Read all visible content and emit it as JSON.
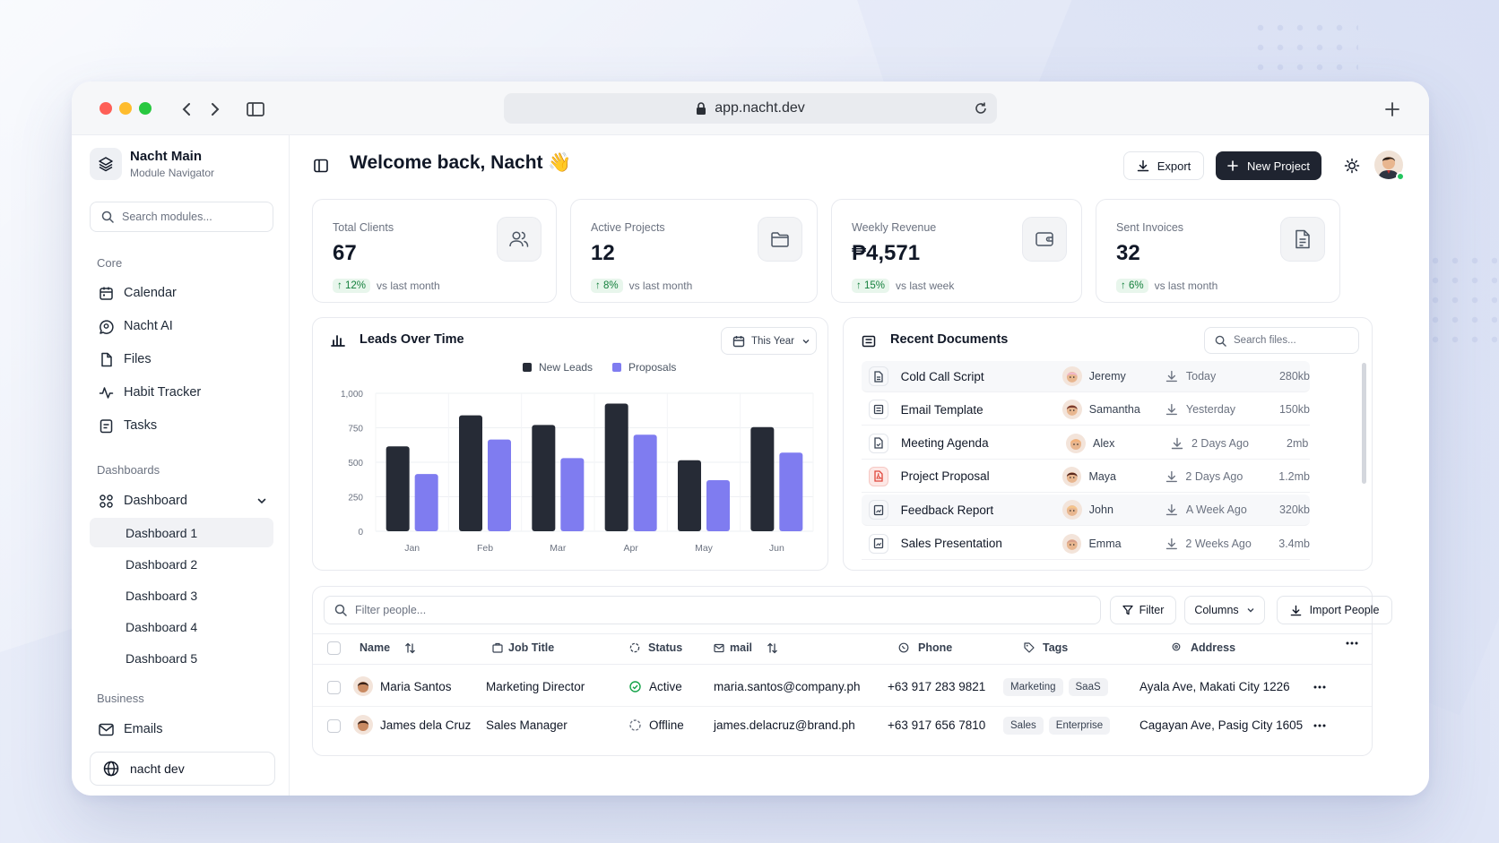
{
  "browser": {
    "url": "app.nacht.dev"
  },
  "colors": {
    "dark": "#1f2430",
    "accent": "#7f7cf0",
    "green": "#16a34a"
  },
  "sidebar": {
    "workspace_name": "Nacht Main",
    "workspace_sub": "Module Navigator",
    "search_placeholder": "Search modules...",
    "core_label": "Core",
    "core_items": [
      {
        "label": "Calendar",
        "icon": "calendar-icon"
      },
      {
        "label": "Nacht AI",
        "icon": "ai-chat-icon"
      },
      {
        "label": "Files",
        "icon": "file-icon"
      },
      {
        "label": "Habit Tracker",
        "icon": "activity-icon"
      },
      {
        "label": "Tasks",
        "icon": "tasks-icon"
      }
    ],
    "dashboards_label": "Dashboards",
    "dashboard_group": "Dashboard",
    "dashboard_items": [
      "Dashboard 1",
      "Dashboard 2",
      "Dashboard 3",
      "Dashboard 4",
      "Dashboard 5"
    ],
    "business_label": "Business",
    "emails": "Emails",
    "footer": "nacht dev"
  },
  "header": {
    "title": "Welcome back, Nacht",
    "emoji": "👋",
    "export": "Export",
    "new_project": "New Project"
  },
  "stats": [
    {
      "label": "Total Clients",
      "value": "67",
      "change": "12%",
      "period": "vs last month",
      "icon": "users-icon"
    },
    {
      "label": "Active Projects",
      "value": "12",
      "change": "8%",
      "period": "vs last month",
      "icon": "folder-icon"
    },
    {
      "label": "Weekly Revenue",
      "value": "₱4,571",
      "change": "15%",
      "period": "vs last week",
      "icon": "wallet-icon"
    },
    {
      "label": "Sent Invoices",
      "value": "32",
      "change": "6%",
      "period": "vs last month",
      "icon": "invoice-icon"
    }
  ],
  "leads": {
    "title": "Leads Over Time",
    "range": "This Year"
  },
  "chart_data": {
    "type": "bar",
    "categories": [
      "Jan",
      "Feb",
      "Mar",
      "Apr",
      "May",
      "Jun"
    ],
    "series": [
      {
        "name": "New Leads",
        "color": "#262b36",
        "values": [
          615,
          840,
          770,
          925,
          515,
          755
        ]
      },
      {
        "name": "Proposals",
        "color": "#7f7cf0",
        "values": [
          415,
          665,
          530,
          700,
          370,
          570
        ]
      }
    ],
    "ylim": [
      0,
      1000
    ],
    "yticks": [
      "1,000",
      "750",
      "500",
      "250",
      "0"
    ],
    "legend": "top-center",
    "grid": true
  },
  "documents": {
    "title": "Recent Documents",
    "search_placeholder": "Search files...",
    "rows": [
      {
        "name": "Cold Call Script",
        "owner": "Jeremy",
        "date": "Today",
        "size": "280kb",
        "avatar": "#f0b6c9"
      },
      {
        "name": "Email Template",
        "owner": "Samantha",
        "date": "Yesterday",
        "size": "150kb",
        "avatar": "#7a3b2e"
      },
      {
        "name": "Meeting Agenda",
        "owner": "Alex",
        "date": "2 Days Ago",
        "size": "2mb",
        "avatar": "#f3b27a"
      },
      {
        "name": "Project Proposal",
        "owner": "Maya",
        "date": "2 Days Ago",
        "size": "1.2mb",
        "avatar": "#5b2a1e"
      },
      {
        "name": "Feedback Report",
        "owner": "John",
        "date": "A Week Ago",
        "size": "320kb",
        "avatar": "#f5c48a"
      },
      {
        "name": "Sales Presentation",
        "owner": "Emma",
        "date": "2 Weeks Ago",
        "size": "3.4mb",
        "avatar": "#d9a08a"
      }
    ]
  },
  "people": {
    "filter_placeholder": "Filter people...",
    "filter": "Filter",
    "columns": "Columns",
    "import": "Import People",
    "headers": {
      "name": "Name",
      "job": "Job Title",
      "status": "Status",
      "mail": "mail",
      "phone": "Phone",
      "tags": "Tags",
      "address": "Address"
    },
    "rows": [
      {
        "name": "Maria Santos",
        "job": "Marketing Director",
        "status": "Active",
        "email": "maria.santos@company.ph",
        "phone": "+63 917 283 9821",
        "tags": [
          "Marketing",
          "SaaS"
        ],
        "address": "Ayala Ave, Makati City 1226"
      },
      {
        "name": "James dela Cruz",
        "job": "Sales Manager",
        "status": "Offline",
        "email": "james.delacruz@brand.ph",
        "phone": "+63 917 656 7810",
        "tags": [
          "Sales",
          "Enterprise"
        ],
        "address": "Cagayan Ave, Pasig City 1605"
      }
    ]
  }
}
